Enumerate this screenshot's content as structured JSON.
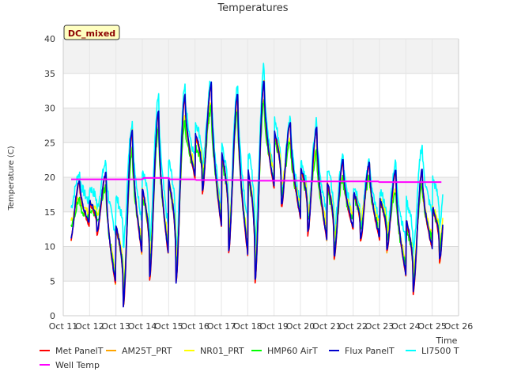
{
  "chart_data": {
    "type": "line",
    "title": "Temperatures",
    "xlabel": "Time",
    "ylabel": "Temperature (C)",
    "ylim": [
      0,
      40
    ],
    "xlim": [
      "Oct 11",
      "Oct 26"
    ],
    "grid": true,
    "x_ticks": [
      "Oct 11",
      "Oct 12",
      "Oct 13",
      "Oct 14",
      "Oct 15",
      "Oct 16",
      "Oct 17",
      "Oct 18",
      "Oct 19",
      "Oct 20",
      "Oct 21",
      "Oct 22",
      "Oct 23",
      "Oct 24",
      "Oct 25",
      "Oct 26"
    ],
    "y_ticks": [
      0,
      5,
      10,
      15,
      20,
      25,
      30,
      35,
      40
    ],
    "annotation": "DC_mixed",
    "legend_position": "bottom",
    "series": [
      {
        "name": "Met PanelT",
        "color": "#ff0000"
      },
      {
        "name": "AM25T_PRT",
        "color": "#ffa500"
      },
      {
        "name": "NR01_PRT",
        "color": "#ffff00"
      },
      {
        "name": "HMP60 AirT",
        "color": "#00ff00"
      },
      {
        "name": "Flux PanelT",
        "color": "#0000cd"
      },
      {
        "name": "LI7500 T",
        "color": "#00ffff"
      },
      {
        "name": "Well Temp",
        "color": "#ff00ff"
      }
    ],
    "daily_extremes": {
      "x": [
        "Oct 11 12:00",
        "Oct 12 12:00",
        "Oct 13 12:00",
        "Oct 14 12:00",
        "Oct 15 12:00",
        "Oct 16 12:00",
        "Oct 17 12:00",
        "Oct 18 12:00",
        "Oct 19 12:00",
        "Oct 20 12:00",
        "Oct 21 12:00",
        "Oct 22 12:00",
        "Oct 23 12:00",
        "Oct 24 12:00",
        "Oct 25 12:00"
      ],
      "flux_panel_min": [
        11,
        12,
        1.5,
        5.5,
        5,
        18,
        9.5,
        5,
        16,
        12,
        8.5,
        11,
        9.5,
        3.5,
        8
      ],
      "flux_panel_max": [
        19.5,
        20.5,
        27,
        29.5,
        32,
        33.5,
        32,
        34,
        28,
        27,
        22.5,
        22,
        21,
        21,
        22
      ],
      "li7500_min": [
        15.5,
        15.5,
        10,
        11,
        9,
        21,
        12,
        10,
        17.5,
        14,
        12,
        13,
        12,
        9,
        13
      ],
      "li7500_max": [
        20.5,
        22,
        28,
        31.5,
        33,
        34,
        33.5,
        36,
        28.5,
        28,
        23,
        22.5,
        22,
        24.5,
        24
      ],
      "hmp60_max": [
        16.5,
        18.5,
        24,
        27,
        28,
        30,
        29.5,
        31,
        25,
        23.5,
        20,
        20,
        18,
        19,
        20
      ],
      "well_temp": [
        19.7,
        19.7,
        19.7,
        19.9,
        19.7,
        19.6,
        19.6,
        19.5,
        19.5,
        19.4,
        19.4,
        19.4,
        19.3,
        19.3,
        19.3
      ]
    }
  }
}
